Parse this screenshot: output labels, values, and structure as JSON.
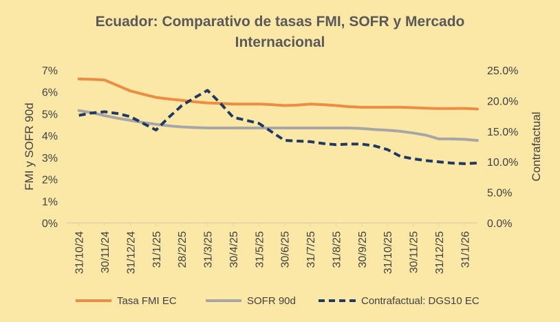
{
  "colors": {
    "background": "#fbe8a6",
    "tasa_fmi": "#ed8d43",
    "sofr": "#a6a6a6",
    "contrafactual": "#1f3864",
    "gridline": "#e0d4a8",
    "text": "#404040"
  },
  "chart_data": {
    "type": "line",
    "title": "Ecuador: Comparativo de tasas FMI, SOFR y Mercado Internacional",
    "title_lines": [
      "Ecuador: Comparativo de tasas FMI, SOFR y Mercado",
      "Internacional"
    ],
    "ylabel_left": "FMI y SOFR 90d",
    "ylabel_right": "Contrafactual",
    "ylim_left": [
      0,
      7
    ],
    "ylim_right": [
      0,
      25
    ],
    "yticks_left": [
      "0%",
      "1%",
      "2%",
      "3%",
      "4%",
      "5%",
      "6%",
      "7%"
    ],
    "yticks_right": [
      "0.0%",
      "5.0%",
      "10.0%",
      "15.0%",
      "20.0%",
      "25.0%"
    ],
    "x_tick_labels": [
      "31/10/24",
      "30/11/24",
      "31/12/24",
      "31/1/25",
      "28/2/25",
      "31/3/25",
      "30/4/25",
      "31/5/25",
      "30/6/25",
      "31/7/25",
      "31/8/25",
      "30/9/25",
      "31/10/25",
      "30/11/25",
      "31/12/25",
      "31/1/26"
    ],
    "x_index": [
      0,
      0.5,
      1,
      1.5,
      2,
      2.5,
      3,
      3.5,
      4,
      4.5,
      5,
      5.5,
      6,
      6.5,
      7,
      7.5,
      8,
      8.5,
      9,
      9.5,
      10,
      10.5,
      11,
      11.5,
      12,
      12.5,
      13,
      13.5,
      14,
      14.5,
      15,
      15.5
    ],
    "legend_position": "bottom",
    "legend": [
      "Tasa FMI EC",
      "SOFR 90d",
      "Contrafactual: DGS10 EC"
    ],
    "series": [
      {
        "name": "Tasa FMI EC",
        "axis": "left",
        "style": "solid",
        "values": [
          6.6,
          6.58,
          6.55,
          6.3,
          6.05,
          5.9,
          5.75,
          5.68,
          5.62,
          5.55,
          5.5,
          5.48,
          5.45,
          5.45,
          5.45,
          5.42,
          5.38,
          5.4,
          5.45,
          5.42,
          5.38,
          5.33,
          5.3,
          5.3,
          5.3,
          5.3,
          5.28,
          5.26,
          5.24,
          5.24,
          5.25,
          5.22
        ]
      },
      {
        "name": "SOFR 90d",
        "axis": "left",
        "style": "solid",
        "values": [
          5.15,
          5.05,
          4.92,
          4.8,
          4.7,
          4.6,
          4.52,
          4.45,
          4.4,
          4.37,
          4.35,
          4.35,
          4.35,
          4.35,
          4.35,
          4.35,
          4.35,
          4.35,
          4.35,
          4.35,
          4.35,
          4.35,
          4.33,
          4.28,
          4.25,
          4.2,
          4.12,
          4.02,
          3.85,
          3.85,
          3.83,
          3.78
        ]
      },
      {
        "name": "Contrafactual: DGS10 EC",
        "axis": "right",
        "style": "dashed",
        "values": [
          17.6,
          18.0,
          18.2,
          17.9,
          17.4,
          16.3,
          15.2,
          17.3,
          19.2,
          20.5,
          21.7,
          19.6,
          17.3,
          16.8,
          16.3,
          14.9,
          13.5,
          13.4,
          13.3,
          13.0,
          12.8,
          12.9,
          12.9,
          12.6,
          12.0,
          10.9,
          10.5,
          10.2,
          10.0,
          9.8,
          9.7,
          9.8
        ]
      }
    ]
  }
}
